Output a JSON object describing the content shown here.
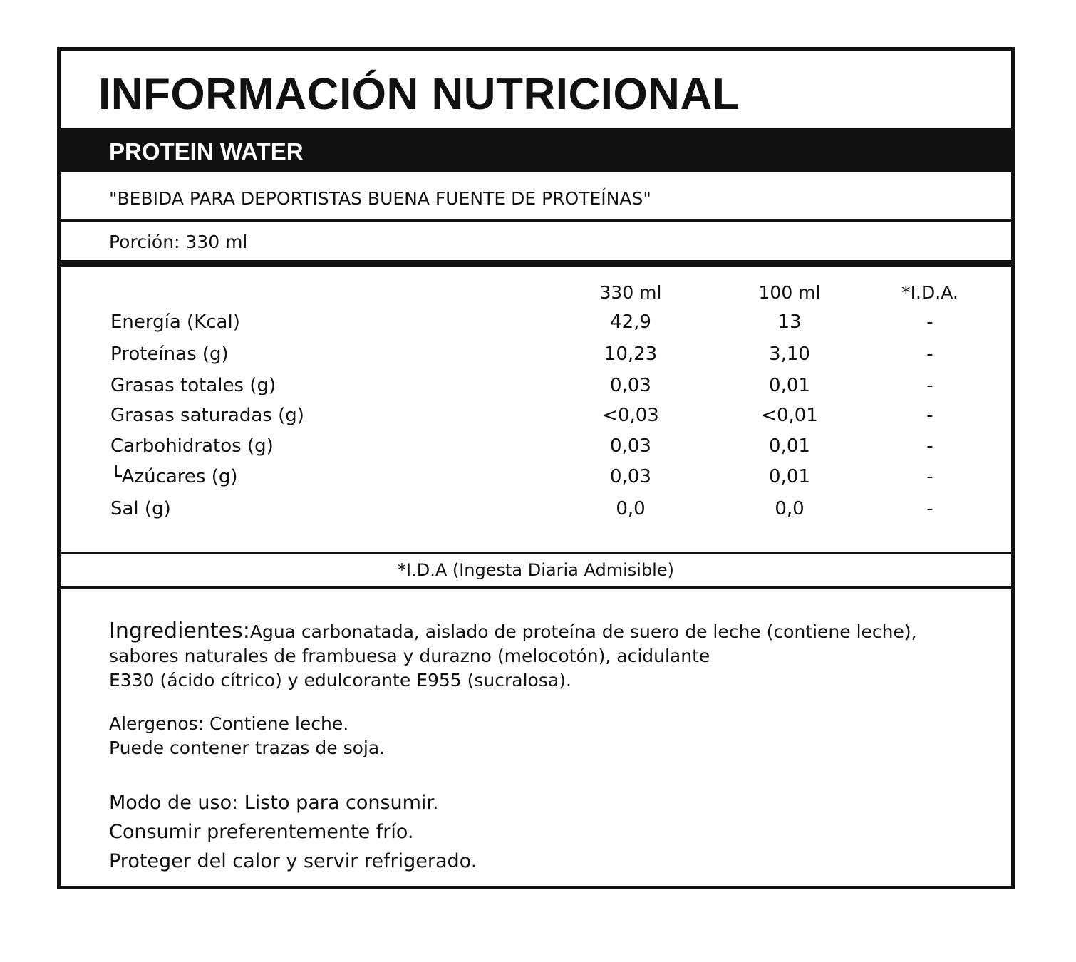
{
  "title": "INFORMACIÓN NUTRICIONAL",
  "product": "PROTEIN WATER",
  "claim": "\"BEBIDA PARA DEPORTISTAS BUENA FUENTE DE PROTEÍNAS\"",
  "portion": "Porción: 330 ml",
  "table": {
    "headers": [
      "330 ml",
      "100 ml",
      "*I.D.A."
    ],
    "rows": [
      {
        "name": "Energía (Kcal)",
        "v330": "42,9",
        "v100": "13",
        "ida": "-"
      },
      {
        "name": "Proteínas (g)",
        "v330": "10,23",
        "v100": "3,10",
        "ida": "-"
      },
      {
        "name": "Grasas totales (g)",
        "v330": "0,03",
        "v100": "0,01",
        "ida": "-"
      },
      {
        "name": "Grasas saturadas (g)",
        "v330": "<0,03",
        "v100": "<0,01",
        "ida": "-"
      },
      {
        "name": "Carbohidratos (g)",
        "v330": "0,03",
        "v100": "0,01",
        "ida": "-"
      },
      {
        "name": "└Azúcares (g)",
        "v330": "0,03",
        "v100": "0,01",
        "ida": "-"
      },
      {
        "name": "Sal (g)",
        "v330": "0,0",
        "v100": "0,0",
        "ida": "-"
      }
    ]
  },
  "ida_note": "*I.D.A (Ingesta Diaria Admisible)",
  "ingredients": {
    "label": "Ingredientes:",
    "line1": "Agua carbonatada, aislado de proteína de suero de leche (contiene leche),",
    "line2": "sabores naturales de frambuesa y durazno (melocotón), acidulante",
    "line3": "E330 (ácido cítrico) y edulcorante E955 (sucralosa)."
  },
  "allergens": {
    "line1": "Alergenos: Contiene leche.",
    "line2": "Puede contener trazas de soja."
  },
  "usage": {
    "line1": "Modo de uso: Listo para consumir.",
    "line2": "Consumir preferentemente frío.",
    "line3": "Proteger del calor y servir refrigerado."
  }
}
